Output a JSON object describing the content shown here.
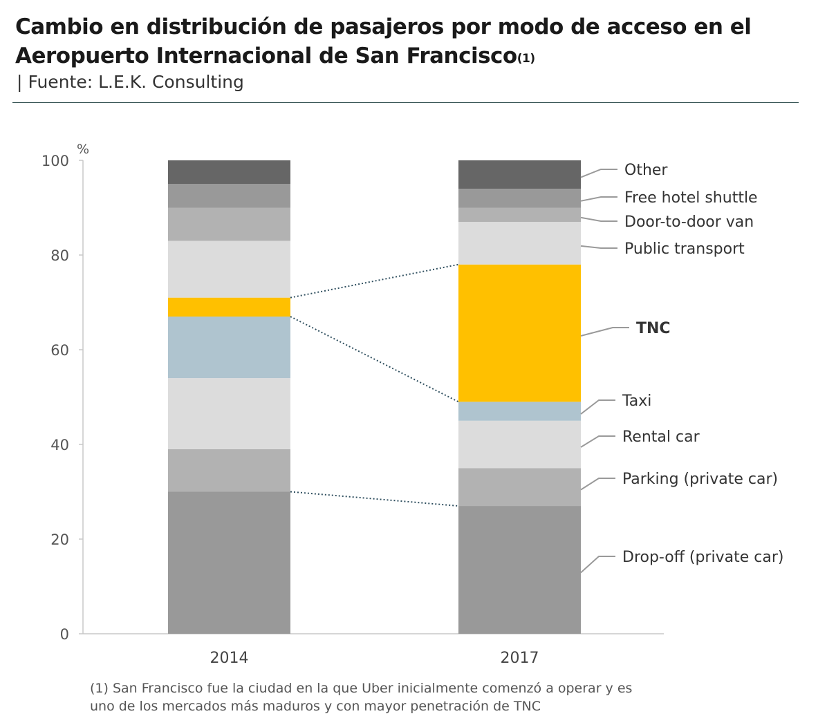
{
  "header": {
    "title": "Cambio en distribución de pasajeros por modo de acceso en el Aeropuerto Internacional de San Francisco",
    "title_superscript": "(1)",
    "source_prefix": "|",
    "source": "Fuente: L.E.K. Consulting"
  },
  "footnote": "(1) San Francisco fue la ciudad en la que Uber inicialmente comenzó a operar y es uno de los mercados más maduros y con mayor penetración de TNC",
  "chart_data": {
    "type": "bar",
    "stacked": true,
    "ylabel": "%",
    "ylim": [
      0,
      100
    ],
    "yticks": [
      0,
      20,
      40,
      60,
      80,
      100
    ],
    "categories": [
      "2014",
      "2017"
    ],
    "highlight_series": "TNC",
    "legend_placement": "right",
    "series": [
      {
        "name": "Drop-off (private car)",
        "values": [
          30,
          27
        ],
        "color": "#999999"
      },
      {
        "name": "Parking (private car)",
        "values": [
          9,
          8
        ],
        "color": "#b2b2b2"
      },
      {
        "name": "Rental car",
        "values": [
          15,
          10
        ],
        "color": "#dcdcdc"
      },
      {
        "name": "Taxi",
        "values": [
          13,
          4
        ],
        "color": "#afc4cf"
      },
      {
        "name": "TNC",
        "values": [
          4,
          29
        ],
        "color": "#ffc000"
      },
      {
        "name": "Public transport",
        "values": [
          12,
          9
        ],
        "color": "#dcdcdc"
      },
      {
        "name": "Door-to-door van",
        "values": [
          7,
          3
        ],
        "color": "#b2b2b2"
      },
      {
        "name": "Free hotel shuttle",
        "values": [
          5,
          4
        ],
        "color": "#999999"
      },
      {
        "name": "Other",
        "values": [
          5,
          6
        ],
        "color": "#666666"
      }
    ]
  }
}
